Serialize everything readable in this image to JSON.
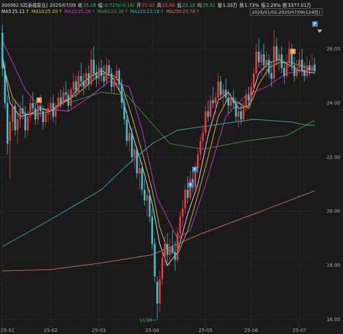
{
  "header": {
    "code": "300992.SZ[泰福泵业]",
    "date": "2025/07/09",
    "items": [
      {
        "label": "收",
        "value": "25.18",
        "color": "#27c25c"
      },
      {
        "label": "幅",
        "value": "-0.71%(-0.18)",
        "color": "#27c25c"
      },
      {
        "label": "开",
        "value": "25.42",
        "color": "#ef4a4a"
      },
      {
        "label": "高",
        "value": "25.68",
        "color": "#ef4a4a"
      },
      {
        "label": "低",
        "value": "25.10",
        "color": "#27c25c"
      },
      {
        "label": "均",
        "value": "25.31",
        "color": "#27c25c"
      },
      {
        "label": "量",
        "value": "1.33万",
        "color": "#e6e6e6"
      },
      {
        "label": "换",
        "value": "1.73%",
        "color": "#e6e6e6"
      },
      {
        "label": "振",
        "value": "2.29%",
        "color": "#e6e6e6"
      },
      {
        "label": "额",
        "value": "3377.01万",
        "color": "#e6e6e6"
      }
    ]
  },
  "markers": [
    "E",
    "F",
    "D",
    "F",
    "F"
  ],
  "chart_data": {
    "type": "candlestick",
    "up_color": "#ec3b3b",
    "down_color": "#3cc6cf",
    "date_range": "2025/01/02-2025/07/09(124日)",
    "ma_arrow": "↑",
    "low_arrow": "→",
    "ylim": [
      15.65,
      27.3
    ],
    "yticks": [
      {
        "value": 26,
        "label": "26.00"
      },
      {
        "value": 24,
        "label": "24.00"
      },
      {
        "value": 22,
        "label": "22.00"
      },
      {
        "value": 20,
        "label": "20.00"
      },
      {
        "value": 18,
        "label": "18.00"
      },
      {
        "value": 16,
        "label": "16.00"
      }
    ],
    "xlim": [
      0.05,
      124.9
    ],
    "xticks": [
      {
        "value": 1,
        "label": "25-01"
      },
      {
        "value": 20,
        "label": "25-02"
      },
      {
        "value": 39,
        "label": "25-03"
      },
      {
        "value": 60,
        "label": "25-04"
      },
      {
        "value": 81,
        "label": "25-05"
      },
      {
        "value": 99,
        "label": "25-06"
      },
      {
        "value": 118,
        "label": "25-07"
      }
    ],
    "grid": true,
    "ohlc": [
      [
        26.6,
        26.9,
        25.0,
        25.3
      ],
      [
        25.2,
        25.5,
        23.8,
        24.0
      ],
      [
        24.0,
        24.3,
        22.1,
        22.5
      ],
      [
        22.6,
        23.6,
        21.2,
        23.3
      ],
      [
        23.3,
        24.2,
        23.0,
        23.9
      ],
      [
        23.9,
        24.1,
        22.8,
        23.0
      ],
      [
        23.0,
        23.6,
        22.5,
        23.4
      ],
      [
        23.4,
        24.0,
        23.1,
        23.8
      ],
      [
        23.8,
        24.3,
        23.4,
        23.6
      ],
      [
        23.6,
        23.9,
        22.7,
        23.0
      ],
      [
        23.0,
        23.7,
        22.8,
        23.5
      ],
      [
        23.5,
        24.2,
        23.3,
        24.0
      ],
      [
        24.0,
        24.4,
        23.6,
        23.8
      ],
      [
        23.8,
        24.0,
        23.2,
        23.4
      ],
      [
        23.4,
        24.1,
        23.2,
        23.9
      ],
      [
        23.9,
        24.3,
        23.5,
        23.7
      ],
      [
        23.7,
        23.9,
        23.0,
        23.3
      ],
      [
        23.3,
        23.8,
        23.1,
        23.6
      ],
      [
        23.6,
        24.0,
        23.3,
        23.8
      ],
      [
        23.8,
        24.2,
        23.4,
        24.0
      ],
      [
        24.0,
        24.3,
        23.3,
        23.5
      ],
      [
        23.5,
        24.0,
        23.2,
        23.9
      ],
      [
        23.9,
        24.4,
        23.7,
        24.2
      ],
      [
        24.2,
        24.5,
        23.8,
        24.0
      ],
      [
        24.0,
        24.6,
        23.9,
        24.4
      ],
      [
        24.4,
        24.8,
        24.1,
        24.3
      ],
      [
        24.3,
        24.5,
        23.7,
        23.9
      ],
      [
        23.9,
        24.6,
        23.8,
        24.5
      ],
      [
        24.5,
        25.1,
        24.3,
        24.8
      ],
      [
        24.8,
        25.0,
        24.2,
        24.4
      ],
      [
        24.4,
        25.2,
        24.3,
        25.0
      ],
      [
        25.0,
        25.5,
        24.6,
        24.8
      ],
      [
        24.8,
        25.1,
        24.3,
        24.6
      ],
      [
        24.6,
        25.3,
        24.5,
        25.1
      ],
      [
        25.1,
        25.4,
        24.5,
        24.7
      ],
      [
        24.7,
        26.0,
        24.6,
        25.6
      ],
      [
        25.6,
        26.1,
        24.9,
        25.1
      ],
      [
        25.1,
        25.4,
        24.6,
        24.9
      ],
      [
        24.9,
        25.5,
        24.7,
        25.3
      ],
      [
        25.3,
        25.6,
        24.8,
        25.0
      ],
      [
        25.0,
        25.4,
        24.6,
        24.8
      ],
      [
        24.8,
        25.7,
        24.7,
        25.4
      ],
      [
        25.4,
        25.6,
        24.9,
        25.1
      ],
      [
        25.1,
        25.3,
        24.4,
        24.6
      ],
      [
        24.6,
        25.0,
        24.3,
        24.9
      ],
      [
        24.9,
        25.4,
        24.7,
        25.2
      ],
      [
        25.2,
        25.3,
        24.5,
        24.7
      ],
      [
        24.7,
        24.9,
        23.8,
        24.0
      ],
      [
        24.0,
        24.3,
        23.2,
        23.4
      ],
      [
        23.4,
        23.7,
        22.4,
        22.6
      ],
      [
        22.6,
        23.2,
        22.2,
        22.9
      ],
      [
        22.9,
        23.1,
        21.8,
        22.0
      ],
      [
        22.0,
        22.5,
        21.6,
        22.3
      ],
      [
        22.3,
        22.4,
        21.2,
        21.4
      ],
      [
        21.4,
        21.9,
        20.8,
        21.6
      ],
      [
        21.6,
        21.8,
        20.6,
        20.8
      ],
      [
        20.8,
        21.2,
        20.2,
        20.4
      ],
      [
        20.4,
        20.9,
        19.8,
        20.6
      ],
      [
        20.6,
        20.8,
        19.6,
        19.8
      ],
      [
        19.8,
        20.1,
        18.6,
        18.8
      ],
      [
        18.8,
        19.0,
        17.4,
        17.6
      ],
      [
        17.4,
        17.6,
        15.98,
        16.6
      ],
      [
        16.6,
        17.8,
        16.3,
        17.5
      ],
      [
        17.5,
        18.6,
        17.3,
        18.3
      ],
      [
        18.3,
        19.1,
        18.0,
        18.8
      ],
      [
        18.8,
        19.2,
        18.1,
        18.4
      ],
      [
        18.4,
        19.0,
        18.0,
        18.7
      ],
      [
        18.7,
        19.3,
        18.4,
        18.5
      ],
      [
        18.5,
        18.9,
        17.8,
        18.2
      ],
      [
        18.2,
        19.4,
        18.1,
        19.2
      ],
      [
        19.2,
        20.0,
        19.0,
        19.8
      ],
      [
        19.8,
        20.4,
        19.4,
        20.1
      ],
      [
        20.1,
        21.0,
        19.9,
        20.8
      ],
      [
        20.8,
        21.3,
        20.3,
        20.5
      ],
      [
        20.5,
        21.5,
        20.4,
        21.2
      ],
      [
        21.2,
        21.6,
        20.7,
        20.9
      ],
      [
        20.9,
        21.8,
        20.8,
        21.6
      ],
      [
        21.6,
        22.3,
        21.4,
        22.1
      ],
      [
        22.1,
        22.8,
        21.9,
        22.6
      ],
      [
        22.6,
        23.2,
        22.3,
        22.9
      ],
      [
        22.9,
        23.9,
        22.8,
        23.7
      ],
      [
        23.7,
        24.1,
        23.3,
        23.5
      ],
      [
        23.5,
        24.3,
        23.4,
        24.1
      ],
      [
        24.1,
        24.6,
        23.8,
        24.0
      ],
      [
        24.0,
        24.4,
        23.6,
        24.2
      ],
      [
        24.2,
        25.1,
        24.0,
        24.8
      ],
      [
        24.8,
        25.0,
        24.1,
        24.3
      ],
      [
        24.3,
        24.7,
        23.9,
        24.5
      ],
      [
        24.5,
        24.9,
        24.0,
        24.2
      ],
      [
        24.2,
        24.5,
        23.6,
        23.9
      ],
      [
        23.9,
        24.4,
        23.7,
        24.2
      ],
      [
        24.2,
        24.5,
        23.8,
        24.0
      ],
      [
        24.0,
        24.2,
        23.3,
        23.5
      ],
      [
        23.5,
        23.9,
        23.1,
        23.7
      ],
      [
        23.7,
        24.0,
        23.2,
        23.4
      ],
      [
        23.4,
        24.1,
        23.3,
        23.9
      ],
      [
        23.9,
        24.5,
        23.7,
        24.3
      ],
      [
        24.3,
        24.6,
        23.9,
        24.1
      ],
      [
        24.1,
        24.8,
        24.0,
        24.6
      ],
      [
        24.6,
        25.3,
        24.4,
        25.1
      ],
      [
        25.1,
        26.2,
        25.0,
        25.9
      ],
      [
        25.9,
        26.4,
        25.3,
        25.5
      ],
      [
        25.5,
        26.0,
        25.0,
        25.8
      ],
      [
        25.8,
        26.2,
        25.2,
        25.4
      ],
      [
        25.4,
        25.9,
        25.0,
        25.6
      ],
      [
        25.6,
        25.8,
        24.9,
        25.1
      ],
      [
        25.1,
        25.5,
        24.6,
        24.9
      ],
      [
        24.9,
        26.7,
        24.8,
        26.1
      ],
      [
        26.1,
        26.4,
        25.4,
        25.6
      ],
      [
        25.6,
        26.0,
        25.2,
        25.8
      ],
      [
        25.8,
        26.1,
        25.1,
        25.3
      ],
      [
        25.3,
        25.6,
        24.7,
        25.0
      ],
      [
        25.0,
        25.8,
        24.9,
        25.5
      ],
      [
        25.5,
        26.3,
        25.3,
        26.0
      ],
      [
        26.0,
        26.2,
        25.2,
        25.4
      ],
      [
        25.4,
        25.7,
        24.8,
        25.0
      ],
      [
        25.0,
        25.6,
        24.9,
        25.3
      ],
      [
        25.3,
        25.9,
        25.1,
        25.6
      ],
      [
        25.6,
        26.0,
        25.0,
        25.2
      ],
      [
        25.2,
        25.5,
        24.8,
        25.0
      ],
      [
        25.0,
        25.7,
        24.9,
        25.4
      ],
      [
        25.4,
        25.6,
        25.0,
        25.2
      ],
      [
        25.2,
        25.8,
        25.1,
        25.36
      ],
      [
        25.42,
        25.68,
        25.1,
        25.18
      ]
    ],
    "series": [
      {
        "name": "MA5",
        "legend_value": "25.11",
        "color": "#e8e8e8",
        "x": [
          1,
          4,
          8,
          12,
          16,
          20,
          24,
          28,
          32,
          36,
          40,
          44,
          48,
          52,
          56,
          60,
          63,
          66,
          70,
          74,
          78,
          82,
          86,
          90,
          94,
          98,
          102,
          106,
          110,
          114,
          118,
          124
        ],
        "values": [
          25.8,
          24.0,
          23.5,
          23.6,
          23.8,
          23.7,
          24.0,
          24.2,
          24.7,
          25.0,
          25.2,
          25.0,
          24.3,
          22.9,
          21.7,
          20.3,
          18.8,
          18.0,
          18.5,
          19.9,
          21.0,
          22.8,
          24.1,
          24.4,
          23.8,
          23.9,
          25.1,
          25.5,
          25.6,
          25.4,
          25.2,
          25.11
        ]
      },
      {
        "name": "MA10",
        "legend_value": "25.20",
        "color": "#e6c23c",
        "x": [
          1,
          5,
          10,
          15,
          20,
          25,
          30,
          35,
          40,
          45,
          48,
          52,
          56,
          60,
          63,
          66,
          70,
          74,
          78,
          82,
          86,
          90,
          94,
          98,
          102,
          106,
          110,
          114,
          118,
          124
        ],
        "values": [
          25.5,
          24.2,
          23.6,
          23.6,
          23.7,
          24.0,
          24.3,
          24.7,
          25.1,
          25.0,
          24.7,
          23.5,
          22.2,
          20.8,
          19.4,
          18.6,
          18.4,
          19.3,
          20.6,
          22.0,
          23.5,
          24.2,
          24.0,
          23.8,
          24.7,
          25.3,
          25.5,
          25.5,
          25.4,
          25.2
        ]
      },
      {
        "name": "MA20",
        "legend_value": "25.28",
        "color": "#d03ed0",
        "x": [
          1,
          10,
          16,
          27,
          35,
          43,
          51,
          56,
          62,
          70,
          75,
          81,
          89,
          97,
          105,
          113,
          124
        ],
        "values": [
          26.3,
          24.5,
          23.8,
          23.7,
          24.2,
          24.8,
          24.6,
          23.0,
          20.5,
          19.0,
          19.3,
          21.0,
          23.5,
          24.3,
          24.6,
          25.1,
          25.28
        ]
      },
      {
        "name": "MA60",
        "legend_value": "23.36",
        "color": "#3fa142",
        "x": [
          27,
          40,
          50,
          67,
          80,
          97,
          113,
          124
        ],
        "values": [
          24.0,
          24.4,
          24.3,
          22.5,
          22.3,
          22.6,
          22.8,
          23.36
        ]
      },
      {
        "name": "MA120",
        "legend_value": "23.18",
        "color": "#3ab3b0",
        "x": [
          1,
          20,
          40,
          50,
          60,
          70,
          85,
          100,
          115,
          120,
          124
        ],
        "values": [
          18.7,
          19.7,
          20.8,
          21.7,
          22.5,
          23.0,
          23.2,
          23.4,
          23.3,
          23.2,
          23.18
        ]
      },
      {
        "name": "MA250",
        "legend_value": "20.76",
        "color": "#d9776a",
        "x": [
          1,
          20,
          40,
          60,
          80,
          100,
          124
        ],
        "values": [
          17.8,
          17.85,
          18.1,
          18.4,
          19.2,
          19.9,
          20.76
        ]
      }
    ]
  }
}
